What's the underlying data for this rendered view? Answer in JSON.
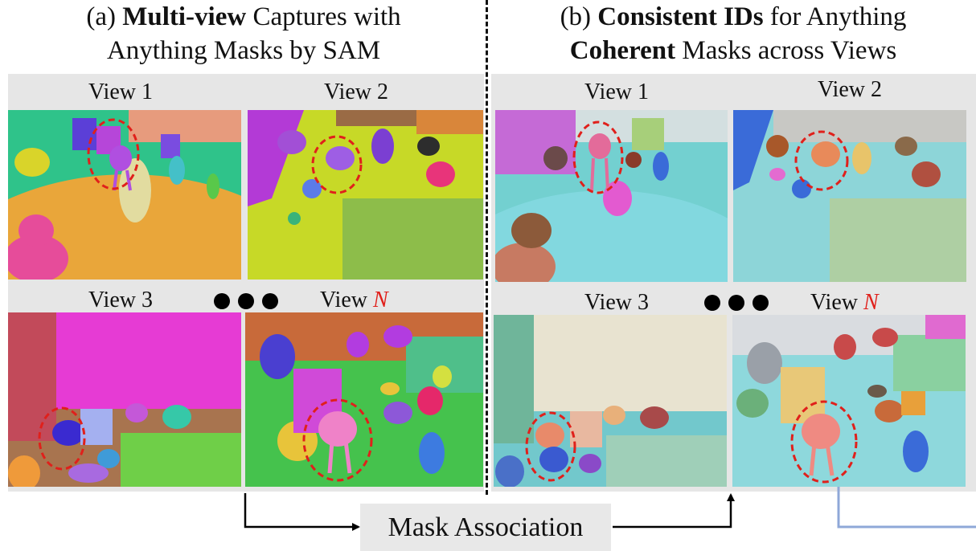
{
  "panel_a": {
    "title_part1": "(a) ",
    "title_bold": "Multi-view",
    "title_part2": " Captures with",
    "title_line2": "Anything Masks by SAM"
  },
  "panel_b": {
    "title_part1": "(b) ",
    "title_bold": "Consistent IDs",
    "title_part2": " for Anything",
    "title_line2_bold": "Coherent",
    "title_line2_rest": " Masks across Views"
  },
  "views": {
    "view1": "View 1",
    "view2": "View 2",
    "view3": "View 3",
    "viewN_prefix": "View ",
    "viewN_var": "N"
  },
  "mask_association": "Mask Association",
  "colors": {
    "highlight_red": "#e0201b",
    "connector_blue": "#8fa8d8",
    "panel_gray": "#e6e6e6"
  }
}
